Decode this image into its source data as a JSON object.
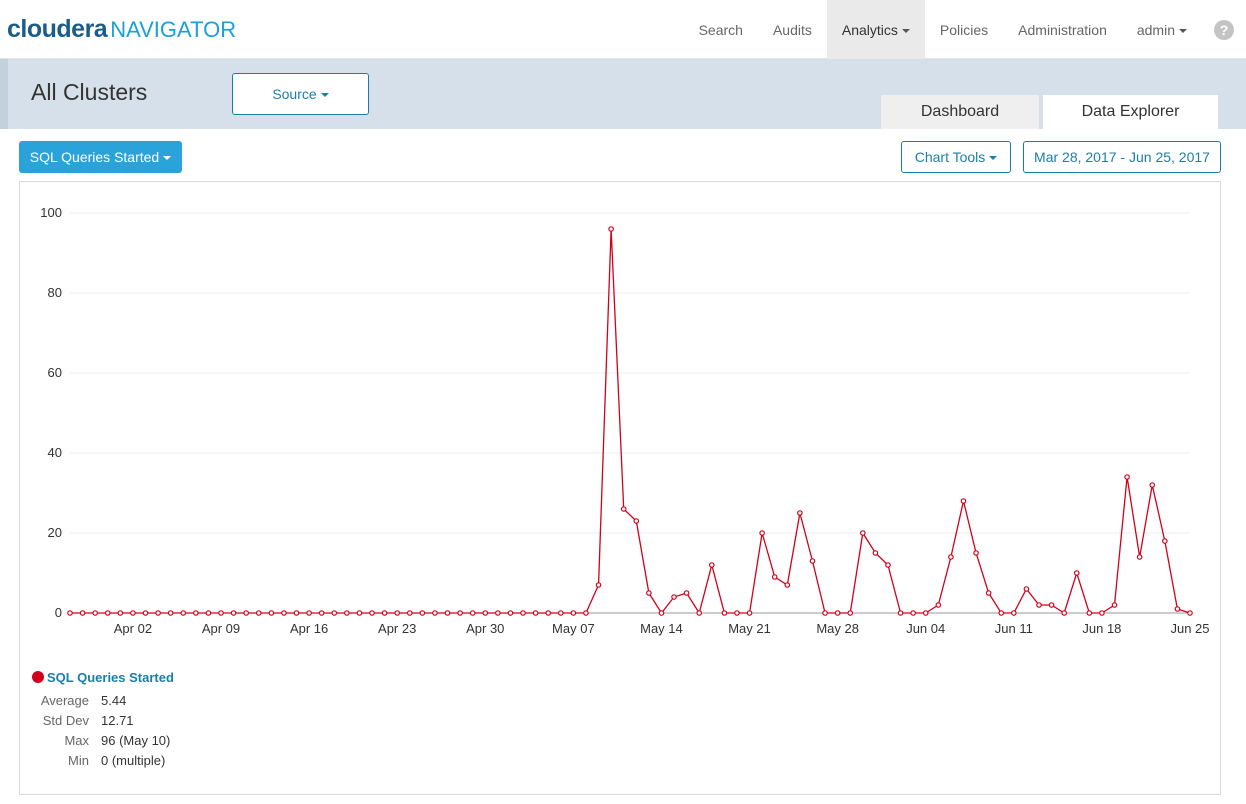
{
  "app": {
    "brand": "cloudera",
    "product": "NAVIGATOR"
  },
  "nav": {
    "items": [
      {
        "label": "Search",
        "active": false,
        "dropdown": false
      },
      {
        "label": "Audits",
        "active": false,
        "dropdown": false
      },
      {
        "label": "Analytics",
        "active": true,
        "dropdown": true
      },
      {
        "label": "Policies",
        "active": false,
        "dropdown": false
      },
      {
        "label": "Administration",
        "active": false,
        "dropdown": false
      },
      {
        "label": "admin",
        "active": false,
        "dropdown": true
      }
    ],
    "help_icon": "question-circle-icon",
    "help_glyph": "?"
  },
  "header": {
    "title": "All Clusters",
    "source_label": "Source",
    "tabs": [
      {
        "label": "Dashboard",
        "selected": false
      },
      {
        "label": "Data Explorer",
        "selected": true
      }
    ]
  },
  "toolbar": {
    "metric_label": "SQL Queries Started",
    "chart_tools_label": "Chart Tools",
    "date_range_label": "Mar 28, 2017 - Jun 25, 2017"
  },
  "colors": {
    "accent": "#29a3d9",
    "link": "#1a7fa8",
    "series": "#d0021b"
  },
  "chart_data": {
    "type": "line",
    "title": "",
    "xlabel": "",
    "ylabel": "",
    "ylim": [
      0,
      100
    ],
    "y_ticks": [
      "0",
      "20",
      "40",
      "60",
      "80",
      "100"
    ],
    "x_ticks": [
      "Apr 02",
      "Apr 09",
      "Apr 16",
      "Apr 23",
      "Apr 30",
      "May 07",
      "May 14",
      "May 21",
      "May 28",
      "Jun 04",
      "Jun 11",
      "Jun 18",
      "Jun 25"
    ],
    "x_first_date": "Mar 28",
    "x_last_date": "Jun 25",
    "grid": true,
    "series": [
      {
        "name": "SQL Queries Started",
        "color": "#d0021b",
        "values": [
          0,
          0,
          0,
          0,
          0,
          0,
          0,
          0,
          0,
          0,
          0,
          0,
          0,
          0,
          0,
          0,
          0,
          0,
          0,
          0,
          0,
          0,
          0,
          0,
          0,
          0,
          0,
          0,
          0,
          0,
          0,
          0,
          0,
          0,
          0,
          0,
          0,
          0,
          0,
          0,
          0,
          0,
          7,
          96,
          26,
          23,
          5,
          0,
          4,
          5,
          0,
          12,
          0,
          0,
          0,
          20,
          9,
          7,
          25,
          13,
          0,
          0,
          0,
          20,
          15,
          12,
          0,
          0,
          0,
          2,
          14,
          28,
          15,
          5,
          0,
          0,
          6,
          2,
          2,
          0,
          10,
          0,
          0,
          2,
          34,
          14,
          32,
          18,
          1,
          0
        ]
      }
    ]
  },
  "legend": {
    "name": "SQL Queries Started",
    "stats": [
      {
        "label": "Average",
        "value": "5.44"
      },
      {
        "label": "Std Dev",
        "value": "12.71"
      },
      {
        "label": "Max",
        "value": "96 (May 10)"
      },
      {
        "label": "Min",
        "value": "0 (multiple)"
      }
    ]
  }
}
